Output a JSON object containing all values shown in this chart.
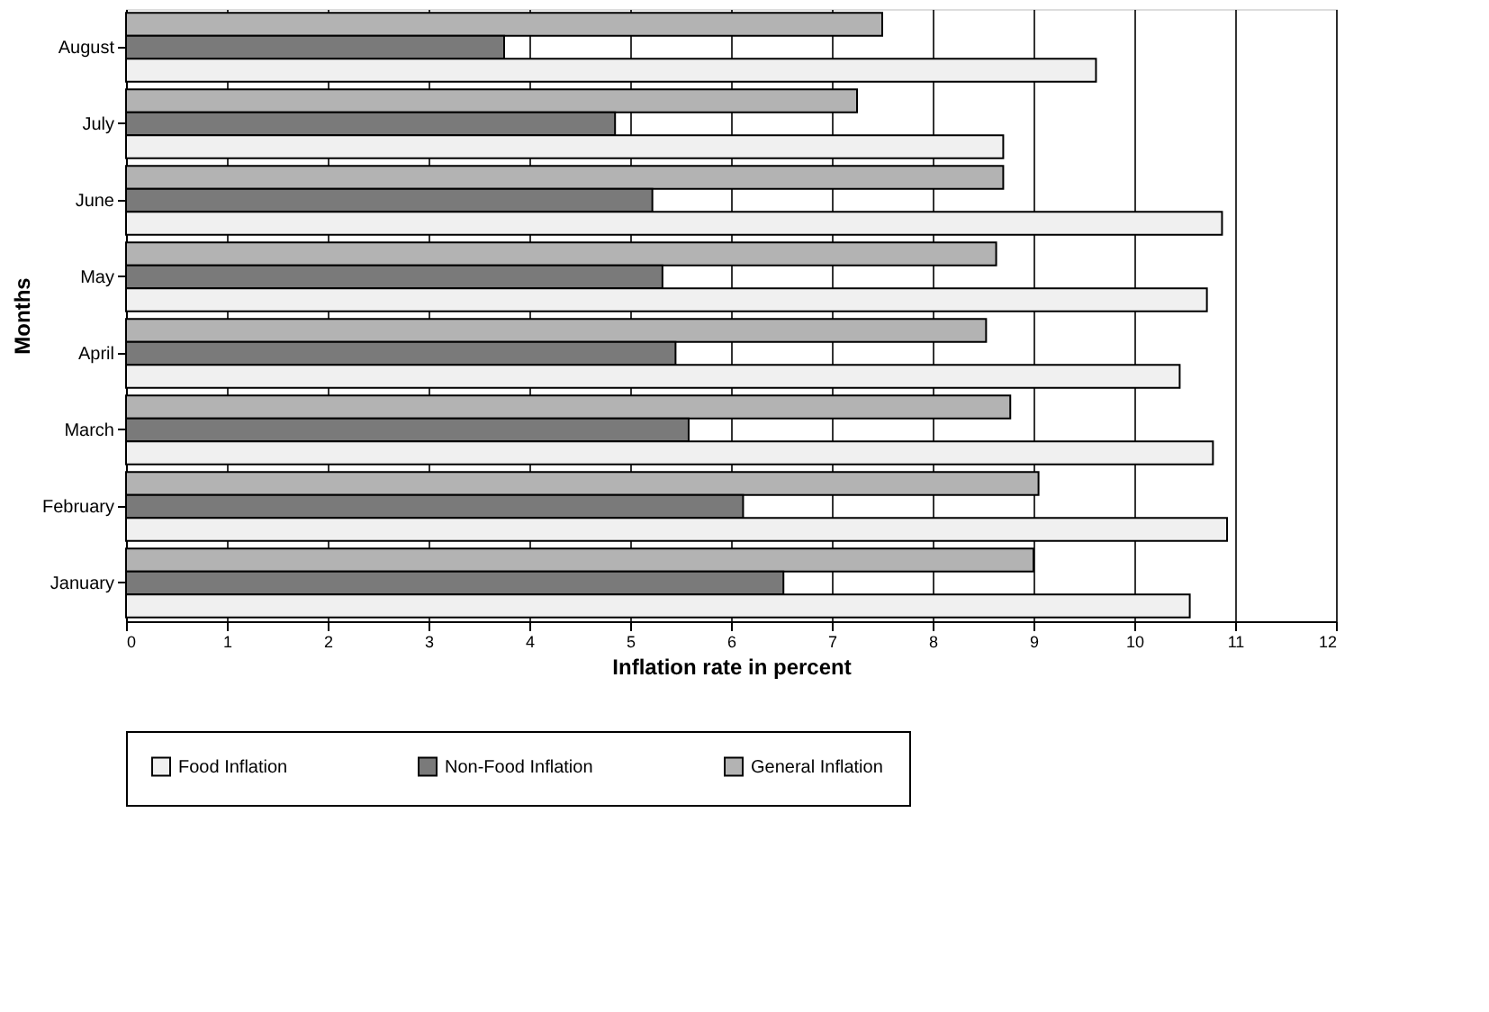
{
  "chart_data": {
    "type": "bar",
    "orientation": "horizontal",
    "xlabel": "Inflation rate in percent",
    "ylabel": "Months",
    "categories": [
      "August",
      "July",
      "June",
      "May",
      "April",
      "March",
      "February",
      "January"
    ],
    "series": [
      {
        "name": "General Inflation",
        "color": "#b3b3b3",
        "values": [
          7.5,
          7.25,
          8.7,
          8.63,
          8.53,
          8.77,
          9.05,
          9.0
        ]
      },
      {
        "name": "Non-Food Inflation",
        "color": "#7a7a7a",
        "values": [
          3.75,
          4.85,
          5.22,
          5.32,
          5.45,
          5.58,
          6.12,
          6.52
        ]
      },
      {
        "name": "Food Inflation",
        "color": "#f0f0f0",
        "values": [
          9.62,
          8.7,
          10.87,
          10.72,
          10.45,
          10.78,
          10.92,
          10.55
        ]
      }
    ],
    "xlim": [
      0,
      12
    ],
    "xticks": [
      0,
      1,
      2,
      3,
      4,
      5,
      6,
      7,
      8,
      9,
      10,
      11,
      12
    ],
    "grid": "x",
    "legend": "bottom"
  }
}
